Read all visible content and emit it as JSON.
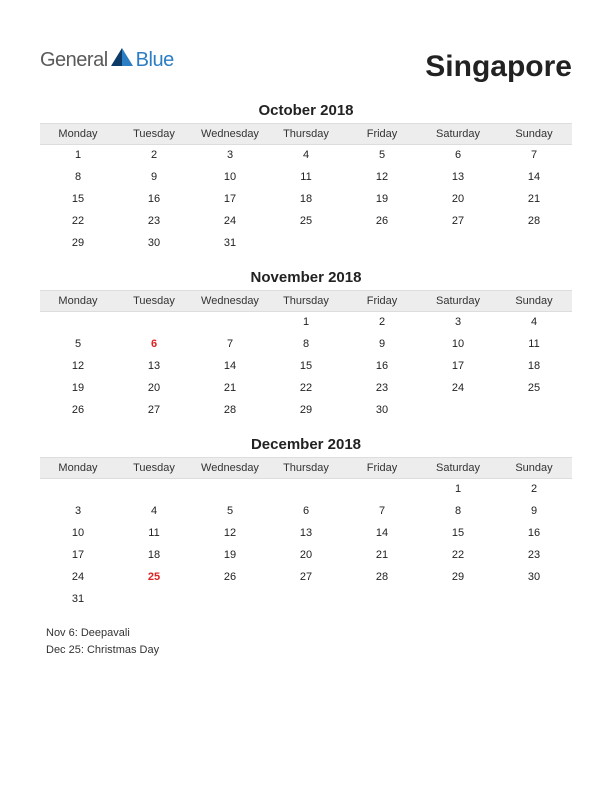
{
  "logo": {
    "text1": "General",
    "text2": "Blue"
  },
  "title": "Singapore",
  "colors": {
    "logo_gray": "#5a5a5a",
    "logo_blue": "#2b7dc4",
    "logo_dark": "#0d3a66",
    "holiday": "#d22",
    "header_bg": "#ededed",
    "text": "#222222",
    "background": "#ffffff"
  },
  "typography": {
    "title_fontsize": 30,
    "title_weight": 700,
    "month_title_fontsize": 15,
    "month_title_weight": 700,
    "cell_fontsize": 11,
    "holiday_list_fontsize": 11
  },
  "weekdays": [
    "Monday",
    "Tuesday",
    "Wednesday",
    "Thursday",
    "Friday",
    "Saturday",
    "Sunday"
  ],
  "months": [
    {
      "title": "October 2018",
      "weeks": [
        [
          "1",
          "2",
          "3",
          "4",
          "5",
          "6",
          "7"
        ],
        [
          "8",
          "9",
          "10",
          "11",
          "12",
          "13",
          "14"
        ],
        [
          "15",
          "16",
          "17",
          "18",
          "19",
          "20",
          "21"
        ],
        [
          "22",
          "23",
          "24",
          "25",
          "26",
          "27",
          "28"
        ],
        [
          "29",
          "30",
          "31",
          "",
          "",
          "",
          ""
        ]
      ],
      "holidays": []
    },
    {
      "title": "November 2018",
      "weeks": [
        [
          "",
          "",
          "",
          "1",
          "2",
          "3",
          "4"
        ],
        [
          "5",
          "6",
          "7",
          "8",
          "9",
          "10",
          "11"
        ],
        [
          "12",
          "13",
          "14",
          "15",
          "16",
          "17",
          "18"
        ],
        [
          "19",
          "20",
          "21",
          "22",
          "23",
          "24",
          "25"
        ],
        [
          "26",
          "27",
          "28",
          "29",
          "30",
          "",
          ""
        ]
      ],
      "holidays": [
        "6"
      ]
    },
    {
      "title": "December 2018",
      "weeks": [
        [
          "",
          "",
          "",
          "",
          "",
          "1",
          "2"
        ],
        [
          "3",
          "4",
          "5",
          "6",
          "7",
          "8",
          "9"
        ],
        [
          "10",
          "11",
          "12",
          "13",
          "14",
          "15",
          "16"
        ],
        [
          "17",
          "18",
          "19",
          "20",
          "21",
          "22",
          "23"
        ],
        [
          "24",
          "25",
          "26",
          "27",
          "28",
          "29",
          "30"
        ],
        [
          "31",
          "",
          "",
          "",
          "",
          "",
          ""
        ]
      ],
      "holidays": [
        "25"
      ]
    }
  ],
  "holiday_list": [
    "Nov 6: Deepavali",
    "Dec 25: Christmas Day"
  ]
}
